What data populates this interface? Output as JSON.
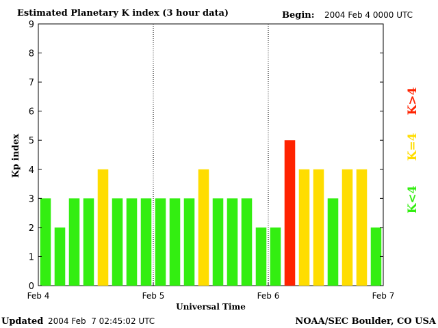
{
  "header": {
    "title": "Estimated Planetary K index (3 hour data)",
    "begin_label": "Begin:",
    "begin_value": "2004 Feb 4 0000 UTC"
  },
  "footer": {
    "updated_label": "Updated",
    "updated_value": "2004 Feb  7 02:45:02 UTC",
    "source": "NOAA/SEC Boulder, CO USA"
  },
  "legend": {
    "high": "K>4",
    "equal": "K=4",
    "low": "K<4"
  },
  "colors": {
    "low": "#33ee11",
    "equal": "#ffdd00",
    "high": "#ff2200",
    "axis": "#000000"
  },
  "chart_data": {
    "type": "bar",
    "title": "Estimated Planetary K index (3 hour data)",
    "xlabel": "Universal Time",
    "ylabel": "Kp index",
    "ylim": [
      0,
      9
    ],
    "yticks": [
      0,
      1,
      2,
      3,
      4,
      5,
      6,
      7,
      8,
      9
    ],
    "xticks": [
      "Feb 4",
      "Feb 5",
      "Feb 6",
      "Feb 7"
    ],
    "interval_hours": 3,
    "day_separators": [
      "Feb 5",
      "Feb 6"
    ],
    "values": [
      3,
      2,
      3,
      3,
      4,
      3,
      3,
      3,
      3,
      3,
      3,
      4,
      3,
      3,
      3,
      2,
      2,
      5,
      4,
      4,
      3,
      4,
      4,
      2
    ]
  }
}
